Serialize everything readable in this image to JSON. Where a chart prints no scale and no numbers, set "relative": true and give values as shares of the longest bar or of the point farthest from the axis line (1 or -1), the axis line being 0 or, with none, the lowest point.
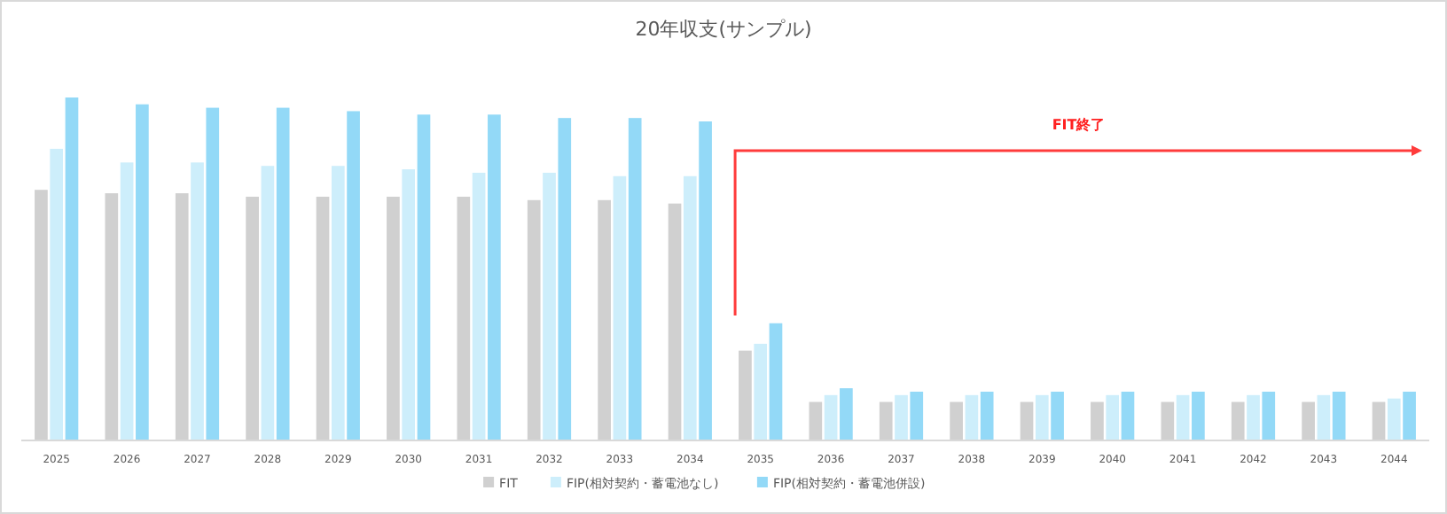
{
  "chart_data": {
    "type": "bar",
    "title": "20年収支(サンプル)",
    "relative": true,
    "legend": "bottom",
    "categories": [
      "2025",
      "2026",
      "2027",
      "2028",
      "2029",
      "2030",
      "2031",
      "2032",
      "2033",
      "2034",
      "2035",
      "2036",
      "2037",
      "2038",
      "2039",
      "2040",
      "2041",
      "2042",
      "2043",
      "2044"
    ],
    "series": [
      {
        "name": "FIT",
        "color": "#d0d0d0",
        "values": [
          0.73,
          0.72,
          0.72,
          0.71,
          0.71,
          0.71,
          0.71,
          0.7,
          0.7,
          0.69,
          0.26,
          0.11,
          0.11,
          0.11,
          0.11,
          0.11,
          0.11,
          0.11,
          0.11,
          0.11
        ]
      },
      {
        "name": "FIP(相対契約・蓄電池なし)",
        "color": "#cdeefb",
        "values": [
          0.85,
          0.81,
          0.81,
          0.8,
          0.8,
          0.79,
          0.78,
          0.78,
          0.77,
          0.77,
          0.28,
          0.13,
          0.13,
          0.13,
          0.13,
          0.13,
          0.13,
          0.13,
          0.13,
          0.12
        ]
      },
      {
        "name": "FIP(相対契約・蓄電池併設)",
        "color": "#93d9f7",
        "values": [
          1,
          0.98,
          0.97,
          0.97,
          0.96,
          0.95,
          0.95,
          0.94,
          0.94,
          0.93,
          0.34,
          0.15,
          0.14,
          0.14,
          0.14,
          0.14,
          0.14,
          0.14,
          0.14,
          0.14
        ]
      }
    ],
    "annotations": [
      "FIT終了"
    ]
  }
}
